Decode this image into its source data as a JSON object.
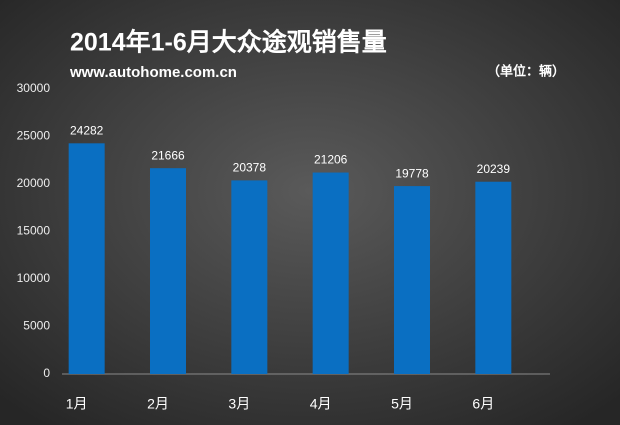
{
  "chart_data": {
    "type": "bar",
    "title": "2014年1-6月大众途观销售量",
    "subtitle": "www.autohome.com.cn",
    "unit": "（单位：辆）",
    "categories": [
      "1月",
      "2月",
      "3月",
      "4月",
      "5月",
      "6月"
    ],
    "values": [
      24282,
      21666,
      20378,
      21206,
      19778,
      20239
    ],
    "color": "#0a6fc2",
    "ylim": [
      0,
      30000
    ],
    "yticks": [
      0,
      5000,
      10000,
      15000,
      20000,
      25000,
      30000
    ],
    "grid": false
  }
}
